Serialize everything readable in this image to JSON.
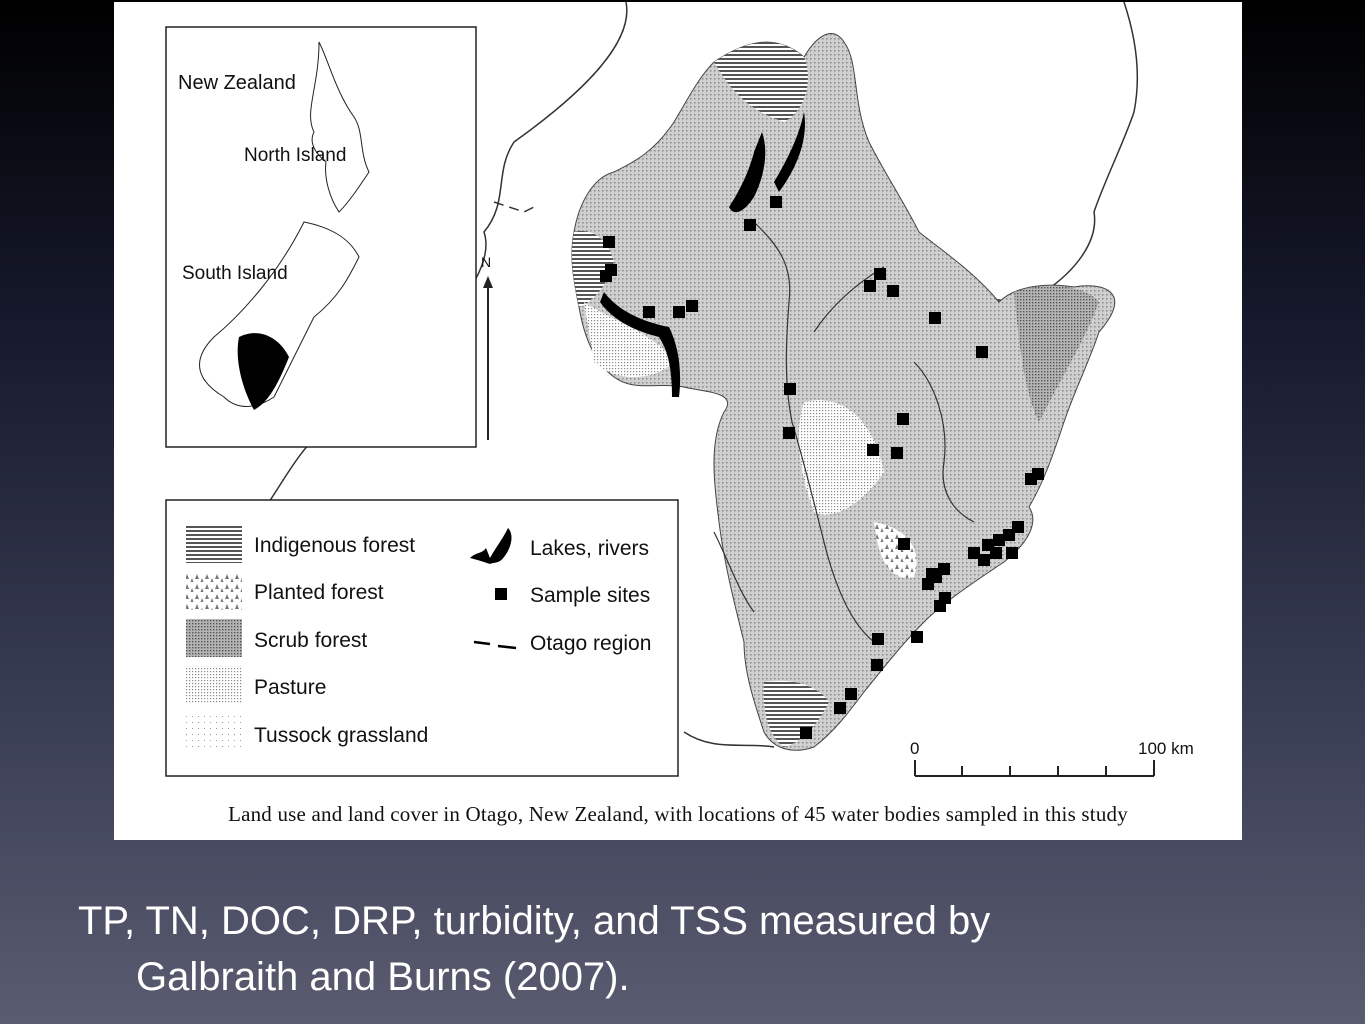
{
  "inset": {
    "labels": [
      "New Zealand",
      "North Island",
      "South Island"
    ]
  },
  "north_arrow": "N",
  "legend": {
    "left": [
      {
        "label": "Indigenous forest",
        "pattern": "hlines"
      },
      {
        "label": "Planted forest",
        "pattern": "trees"
      },
      {
        "label": "Scrub forest",
        "pattern": "darkdots"
      },
      {
        "label": "Pasture",
        "pattern": "dots"
      },
      {
        "label": "Tussock grassland",
        "pattern": "sparse"
      }
    ],
    "right": [
      {
        "label": "Lakes, rivers",
        "symbol": "lake"
      },
      {
        "label": "Sample sites",
        "symbol": "square"
      },
      {
        "label": "Otago region",
        "symbol": "dash"
      }
    ]
  },
  "scale_bar": {
    "start": "0",
    "end": "100 km"
  },
  "caption": "Land use and land cover in Otago, New Zealand, with locations of 45 water bodies sampled in this study",
  "slide_text": {
    "line1": "TP, TN, DOC, DRP, turbidity, and TSS measured by",
    "line2": "Galbraith and Burns (2007)."
  },
  "colors": {
    "sample_site": "#000000",
    "lake": "#000000",
    "land": "#c8c8c8"
  }
}
